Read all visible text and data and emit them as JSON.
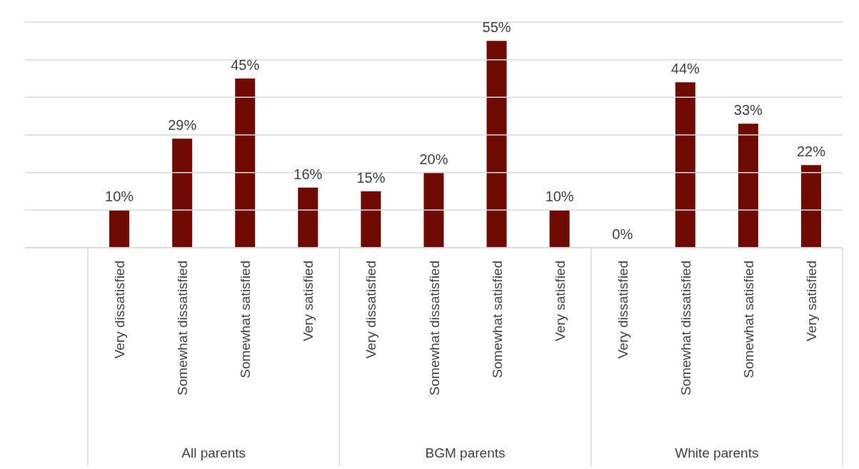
{
  "chart_data": {
    "type": "bar",
    "categories": [
      null,
      "Very dissatisfied",
      "Somewhat dissatisfied",
      "Somewhat satisfied",
      "Very satisfied",
      "Very dissatisfied",
      "Somewhat dissatisfied",
      "Somewhat satisfied",
      "Very satisfied",
      "Very dissatisfied",
      "Somewhat dissatisfied",
      "Somewhat satisfied",
      "Very satisfied"
    ],
    "values": [
      null,
      10,
      29,
      45,
      16,
      15,
      20,
      55,
      10,
      0,
      44,
      33,
      22
    ],
    "value_labels": [
      null,
      "10%",
      "29%",
      "45%",
      "16%",
      "15%",
      "20%",
      "55%",
      "10%",
      "0%",
      "44%",
      "33%",
      "22%"
    ],
    "color": "#6e0a00",
    "ylim": [
      0,
      60
    ],
    "yticks": [
      {
        "value": 0,
        "label": null
      },
      {
        "value": 10,
        "label": null
      },
      {
        "value": 20,
        "label": null
      },
      {
        "value": 30,
        "label": null
      },
      {
        "value": 40,
        "label": null
      },
      {
        "value": 50,
        "label": null
      },
      {
        "value": 60,
        "label": null
      }
    ],
    "tick_labels": "x",
    "grid": "y",
    "annotations": [
      "All parents",
      "BGM parents",
      "White parents"
    ]
  }
}
